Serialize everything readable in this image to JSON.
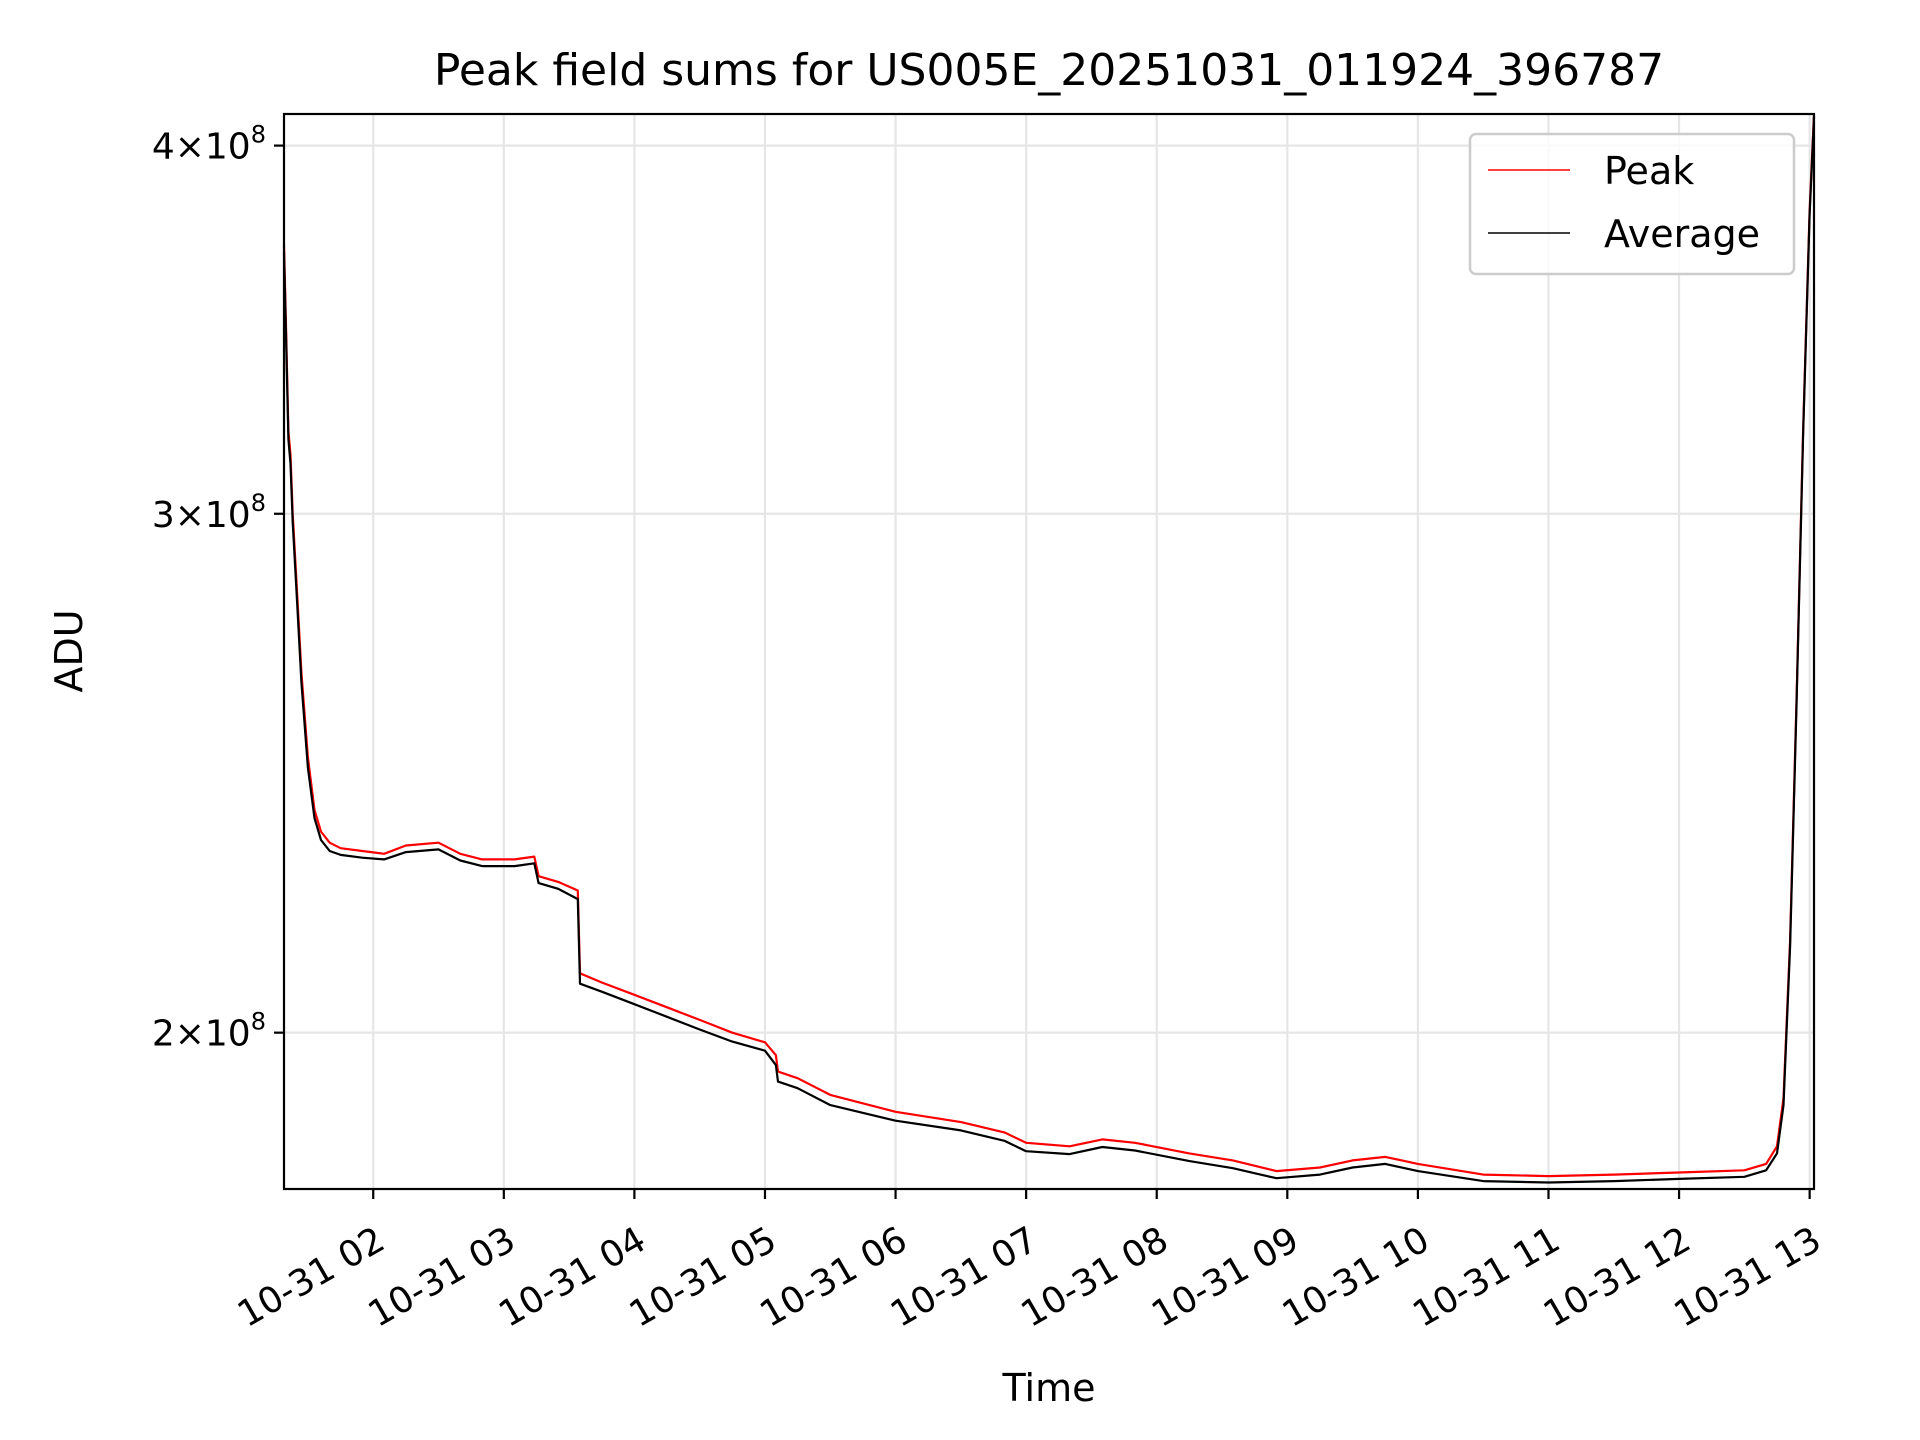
{
  "chart_data": {
    "type": "line",
    "title": "Peak field sums for US005E_20251031_011924_396787",
    "xlabel": "Time",
    "ylabel": "ADU",
    "yscale": "log",
    "ylim": [
      177000000,
      410000000
    ],
    "xlim": [
      "2025-10-31 01:19",
      "2025-10-31 13:02"
    ],
    "grid": true,
    "legend_position": "upper right",
    "x_ticks": [
      {
        "t": "2025-10-31 02:00",
        "label": "10-31 02"
      },
      {
        "t": "2025-10-31 03:00",
        "label": "10-31 03"
      },
      {
        "t": "2025-10-31 04:00",
        "label": "10-31 04"
      },
      {
        "t": "2025-10-31 05:00",
        "label": "10-31 05"
      },
      {
        "t": "2025-10-31 06:00",
        "label": "10-31 06"
      },
      {
        "t": "2025-10-31 07:00",
        "label": "10-31 07"
      },
      {
        "t": "2025-10-31 08:00",
        "label": "10-31 08"
      },
      {
        "t": "2025-10-31 09:00",
        "label": "10-31 09"
      },
      {
        "t": "2025-10-31 10:00",
        "label": "10-31 10"
      },
      {
        "t": "2025-10-31 11:00",
        "label": "10-31 11"
      },
      {
        "t": "2025-10-31 12:00",
        "label": "10-31 12"
      },
      {
        "t": "2025-10-31 13:00",
        "label": "10-31 13"
      }
    ],
    "y_ticks": [
      {
        "v": 200000000,
        "base": "2",
        "exp": "8"
      },
      {
        "v": 300000000,
        "base": "3",
        "exp": "8"
      },
      {
        "v": 400000000,
        "base": "4",
        "exp": "8"
      }
    ],
    "series": [
      {
        "name": "Peak",
        "color": "#ff0000",
        "points": [
          [
            "2025-10-31 01:19",
            370000000
          ],
          [
            "2025-10-31 01:20",
            345000000
          ],
          [
            "2025-10-31 01:21",
            320000000
          ],
          [
            "2025-10-31 01:22",
            314000000
          ],
          [
            "2025-10-31 01:23",
            300000000
          ],
          [
            "2025-10-31 01:25",
            282000000
          ],
          [
            "2025-10-31 01:27",
            265000000
          ],
          [
            "2025-10-31 01:30",
            248000000
          ],
          [
            "2025-10-31 01:33",
            238000000
          ],
          [
            "2025-10-31 01:36",
            234000000
          ],
          [
            "2025-10-31 01:40",
            232000000
          ],
          [
            "2025-10-31 01:45",
            231000000
          ],
          [
            "2025-10-31 01:55",
            230500000
          ],
          [
            "2025-10-31 02:05",
            230000000
          ],
          [
            "2025-10-31 02:15",
            231500000
          ],
          [
            "2025-10-31 02:30",
            232000000
          ],
          [
            "2025-10-31 02:40",
            230000000
          ],
          [
            "2025-10-31 02:50",
            229000000
          ],
          [
            "2025-10-31 03:05",
            229000000
          ],
          [
            "2025-10-31 03:14",
            229500000
          ],
          [
            "2025-10-31 03:16",
            226000000
          ],
          [
            "2025-10-31 03:25",
            225000000
          ],
          [
            "2025-10-31 03:34",
            223500000
          ],
          [
            "2025-10-31 03:35",
            209500000
          ],
          [
            "2025-10-31 03:45",
            208000000
          ],
          [
            "2025-10-31 04:00",
            206000000
          ],
          [
            "2025-10-31 04:15",
            204000000
          ],
          [
            "2025-10-31 04:30",
            202000000
          ],
          [
            "2025-10-31 04:45",
            200000000
          ],
          [
            "2025-10-31 05:00",
            198500000
          ],
          [
            "2025-10-31 05:05",
            196500000
          ],
          [
            "2025-10-31 05:06",
            194000000
          ],
          [
            "2025-10-31 05:15",
            193000000
          ],
          [
            "2025-10-31 05:30",
            190500000
          ],
          [
            "2025-10-31 06:00",
            188000000
          ],
          [
            "2025-10-31 06:30",
            186500000
          ],
          [
            "2025-10-31 06:50",
            185000000
          ],
          [
            "2025-10-31 07:00",
            183500000
          ],
          [
            "2025-10-31 07:20",
            183000000
          ],
          [
            "2025-10-31 07:35",
            184000000
          ],
          [
            "2025-10-31 07:50",
            183500000
          ],
          [
            "2025-10-31 08:15",
            182000000
          ],
          [
            "2025-10-31 08:35",
            181000000
          ],
          [
            "2025-10-31 08:55",
            179500000
          ],
          [
            "2025-10-31 09:15",
            180000000
          ],
          [
            "2025-10-31 09:30",
            181000000
          ],
          [
            "2025-10-31 09:45",
            181500000
          ],
          [
            "2025-10-31 10:00",
            180500000
          ],
          [
            "2025-10-31 10:30",
            179000000
          ],
          [
            "2025-10-31 11:00",
            178800000
          ],
          [
            "2025-10-31 11:30",
            179000000
          ],
          [
            "2025-10-31 12:00",
            179300000
          ],
          [
            "2025-10-31 12:30",
            179600000
          ],
          [
            "2025-10-31 12:40",
            180500000
          ],
          [
            "2025-10-31 12:45",
            183000000
          ],
          [
            "2025-10-31 12:48",
            190000000
          ],
          [
            "2025-10-31 12:51",
            215000000
          ],
          [
            "2025-10-31 12:54",
            260000000
          ],
          [
            "2025-10-31 12:57",
            320000000
          ],
          [
            "2025-10-31 13:00",
            380000000
          ],
          [
            "2025-10-31 13:02",
            410000000
          ]
        ]
      },
      {
        "name": "Average",
        "color": "#000000",
        "points": [
          [
            "2025-10-31 01:19",
            368000000
          ],
          [
            "2025-10-31 01:20",
            343000000
          ],
          [
            "2025-10-31 01:21",
            318000000
          ],
          [
            "2025-10-31 01:22",
            312000000
          ],
          [
            "2025-10-31 01:23",
            298000000
          ],
          [
            "2025-10-31 01:25",
            280000000
          ],
          [
            "2025-10-31 01:27",
            263000000
          ],
          [
            "2025-10-31 01:30",
            246000000
          ],
          [
            "2025-10-31 01:33",
            236500000
          ],
          [
            "2025-10-31 01:36",
            232500000
          ],
          [
            "2025-10-31 01:40",
            230500000
          ],
          [
            "2025-10-31 01:45",
            229800000
          ],
          [
            "2025-10-31 01:55",
            229300000
          ],
          [
            "2025-10-31 02:05",
            229000000
          ],
          [
            "2025-10-31 02:15",
            230300000
          ],
          [
            "2025-10-31 02:30",
            230800000
          ],
          [
            "2025-10-31 02:40",
            228800000
          ],
          [
            "2025-10-31 02:50",
            227800000
          ],
          [
            "2025-10-31 03:05",
            227800000
          ],
          [
            "2025-10-31 03:14",
            228300000
          ],
          [
            "2025-10-31 03:16",
            224800000
          ],
          [
            "2025-10-31 03:25",
            223800000
          ],
          [
            "2025-10-31 03:34",
            222000000
          ],
          [
            "2025-10-31 03:35",
            207800000
          ],
          [
            "2025-10-31 03:45",
            206500000
          ],
          [
            "2025-10-31 04:00",
            204500000
          ],
          [
            "2025-10-31 04:15",
            202500000
          ],
          [
            "2025-10-31 04:30",
            200500000
          ],
          [
            "2025-10-31 04:45",
            198600000
          ],
          [
            "2025-10-31 05:00",
            197200000
          ],
          [
            "2025-10-31 05:05",
            195000000
          ],
          [
            "2025-10-31 05:06",
            192500000
          ],
          [
            "2025-10-31 05:15",
            191500000
          ],
          [
            "2025-10-31 05:30",
            189000000
          ],
          [
            "2025-10-31 06:00",
            186700000
          ],
          [
            "2025-10-31 06:30",
            185300000
          ],
          [
            "2025-10-31 06:50",
            183800000
          ],
          [
            "2025-10-31 07:00",
            182300000
          ],
          [
            "2025-10-31 07:20",
            181900000
          ],
          [
            "2025-10-31 07:35",
            182900000
          ],
          [
            "2025-10-31 07:50",
            182400000
          ],
          [
            "2025-10-31 08:15",
            180900000
          ],
          [
            "2025-10-31 08:35",
            179900000
          ],
          [
            "2025-10-31 08:55",
            178500000
          ],
          [
            "2025-10-31 09:15",
            179000000
          ],
          [
            "2025-10-31 09:30",
            180000000
          ],
          [
            "2025-10-31 09:45",
            180500000
          ],
          [
            "2025-10-31 10:00",
            179500000
          ],
          [
            "2025-10-31 10:30",
            178100000
          ],
          [
            "2025-10-31 11:00",
            177900000
          ],
          [
            "2025-10-31 11:30",
            178100000
          ],
          [
            "2025-10-31 12:00",
            178400000
          ],
          [
            "2025-10-31 12:30",
            178700000
          ],
          [
            "2025-10-31 12:40",
            179600000
          ],
          [
            "2025-10-31 12:45",
            182000000
          ],
          [
            "2025-10-31 12:48",
            189000000
          ],
          [
            "2025-10-31 12:51",
            214000000
          ],
          [
            "2025-10-31 12:54",
            259000000
          ],
          [
            "2025-10-31 12:57",
            319000000
          ],
          [
            "2025-10-31 13:00",
            379000000
          ],
          [
            "2025-10-31 13:02",
            409000000
          ]
        ]
      }
    ]
  }
}
